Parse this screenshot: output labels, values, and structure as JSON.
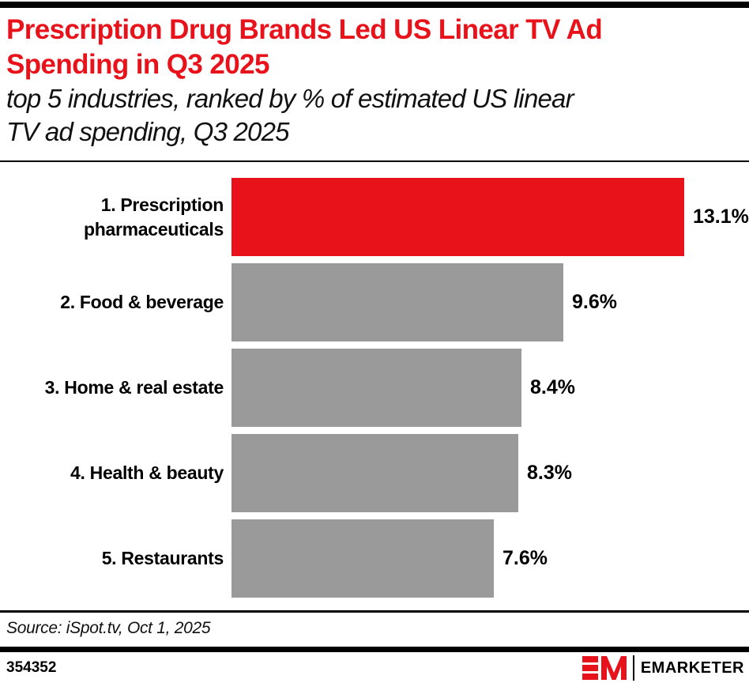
{
  "header": {
    "title_lines": [
      "Prescription Drug Brands Led US Linear TV Ad",
      "Spending in Q3 2025"
    ],
    "subtitle_lines": [
      "top 5 industries, ranked by % of estimated US linear",
      "TV ad spending, Q3 2025"
    ],
    "title_color": "#E8121B"
  },
  "chart_data": {
    "type": "bar",
    "orientation": "horizontal",
    "title": "Prescription Drug Brands Led US Linear TV Ad Spending in Q3 2025",
    "subtitle": "top 5 industries, ranked by % of estimated US linear TV ad spending, Q3 2025",
    "categories": [
      "1. Prescription pharmaceuticals",
      "2. Food & beverage",
      "3. Home & real estate",
      "4. Health & beauty",
      "5. Restaurants"
    ],
    "values": [
      13.1,
      9.6,
      8.4,
      8.3,
      7.6
    ],
    "value_labels": [
      "13.1%",
      "9.6%",
      "8.4%",
      "8.3%",
      "7.6%"
    ],
    "bar_colors": [
      "#E8121B",
      "#9A9A9A",
      "#9A9A9A",
      "#9A9A9A",
      "#9A9A9A"
    ],
    "unit": "%",
    "xlim": [
      0,
      13.1
    ],
    "grid": false,
    "legend": false,
    "highlight_color": "#E8121B",
    "default_bar_color": "#9A9A9A"
  },
  "footer": {
    "source": "Source: iSpot.tv, Oct 1, 2025",
    "chart_id": "354352",
    "brand": "EMARKETER"
  }
}
